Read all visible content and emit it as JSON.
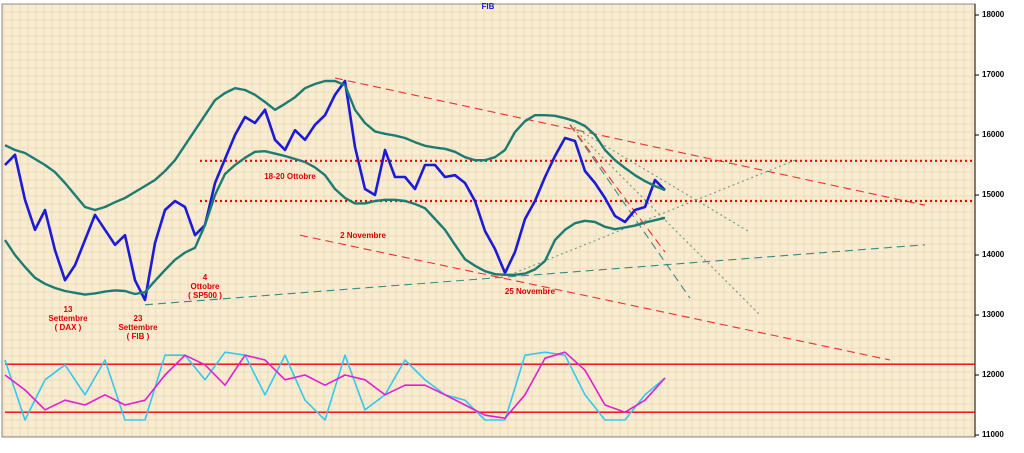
{
  "chart_data": {
    "type": "line",
    "title": "FIB",
    "ylim": [
      11000,
      18000
    ],
    "yticks": [
      11000,
      12000,
      13000,
      14000,
      15000,
      16000,
      17000,
      18000
    ],
    "series": [
      {
        "role": "price",
        "color": "#1c1cd8",
        "width": 2.6,
        "values": [
          15500,
          15670,
          14920,
          14420,
          14750,
          14080,
          13580,
          13830,
          14250,
          14670,
          14420,
          14170,
          14330,
          13580,
          13250,
          14200,
          14750,
          14900,
          14800,
          14330,
          14500,
          15200,
          15600,
          16000,
          16300,
          16200,
          16420,
          15920,
          15750,
          16080,
          15920,
          16170,
          16330,
          16670,
          16900,
          15800,
          15100,
          15000,
          15750,
          15300,
          15300,
          15100,
          15500,
          15500,
          15300,
          15330,
          15200,
          14900,
          14400,
          14100,
          13700,
          14050,
          14600,
          14900,
          15300,
          15650,
          15950,
          15900,
          15400,
          15200,
          14950,
          14650,
          14550,
          14750,
          14800,
          15250,
          15080
        ]
      },
      {
        "role": "band",
        "color": "#1d7c72",
        "width": 2.4,
        "values": [
          15830,
          15750,
          15700,
          15600,
          15500,
          15380,
          15200,
          15000,
          14800,
          14750,
          14800,
          14880,
          14950,
          15050,
          15150,
          15250,
          15400,
          15580,
          15830,
          16080,
          16330,
          16580,
          16700,
          16780,
          16750,
          16670,
          16550,
          16420,
          16520,
          16630,
          16780,
          16850,
          16900,
          16900,
          16830,
          16420,
          16200,
          16060,
          16020,
          15990,
          15950,
          15880,
          15820,
          15790,
          15770,
          15720,
          15630,
          15580,
          15580,
          15630,
          15750,
          16050,
          16230,
          16330,
          16330,
          16320,
          16280,
          16230,
          16150,
          16000,
          15750,
          15580,
          15450,
          15330,
          15230,
          15150,
          15080
        ]
      },
      {
        "role": "band",
        "color": "#1d7c72",
        "width": 2.4,
        "values": [
          14250,
          14000,
          13800,
          13620,
          13520,
          13450,
          13400,
          13370,
          13340,
          13360,
          13390,
          13410,
          13400,
          13350,
          13380,
          13570,
          13750,
          13920,
          14040,
          14120,
          14500,
          15000,
          15350,
          15500,
          15620,
          15720,
          15730,
          15690,
          15650,
          15600,
          15550,
          15460,
          15330,
          15100,
          14950,
          14860,
          14860,
          14900,
          14920,
          14920,
          14900,
          14850,
          14780,
          14600,
          14420,
          14170,
          13930,
          13820,
          13730,
          13680,
          13670,
          13670,
          13690,
          13760,
          13900,
          14250,
          14420,
          14530,
          14570,
          14550,
          14470,
          14430,
          14460,
          14490,
          14540,
          14580,
          14620
        ]
      },
      {
        "role": "oscillator",
        "color": "#35c8ee",
        "width": 1.6,
        "values": [
          12250,
          11250,
          11920,
          12170,
          11670,
          12250,
          11250,
          11250,
          12330,
          12330,
          11920,
          12380,
          12330,
          11670,
          12330,
          11580,
          11250,
          12330,
          11420,
          11670,
          12250,
          11920,
          11670,
          11580,
          11250,
          11250,
          12330,
          12380,
          12330,
          11670,
          11250,
          11250,
          11670,
          11950
        ]
      },
      {
        "role": "oscillator",
        "color": "#e020d0",
        "width": 1.6,
        "values": [
          12000,
          11750,
          11420,
          11580,
          11500,
          11670,
          11500,
          11580,
          12000,
          12330,
          12170,
          11830,
          12330,
          12250,
          11920,
          12000,
          11830,
          12000,
          11920,
          11670,
          11830,
          11830,
          11670,
          11500,
          11330,
          11280,
          11670,
          12280,
          12380,
          12080,
          11500,
          11380,
          11580,
          11950
        ]
      }
    ],
    "levels": [
      {
        "value": 15570,
        "color": "#ee0000",
        "style": "dotted",
        "from": 19.5
      },
      {
        "value": 14900,
        "color": "#ee0000",
        "style": "dotted",
        "from": 19.5
      },
      {
        "value": 12180,
        "color": "#ee0000",
        "style": "solid",
        "from": 0
      },
      {
        "value": 11380,
        "color": "#ee0000",
        "style": "solid",
        "from": 0
      }
    ],
    "trendlines": [
      {
        "x": [
          33,
          92
        ],
        "values": [
          16950,
          14830
        ],
        "color": "#ee3030",
        "style": "dashed"
      },
      {
        "x": [
          29.5,
          88.5
        ],
        "values": [
          14330,
          12250
        ],
        "color": "#ee3030",
        "style": "dashed"
      },
      {
        "x": [
          14,
          92
        ],
        "values": [
          13170,
          14170
        ],
        "color": "#3a8a8a",
        "style": "dashed"
      },
      {
        "x": [
          56.5,
          74.5
        ],
        "values": [
          16170,
          14380
        ],
        "color": "#6a9a80",
        "style": "dotted"
      },
      {
        "x": [
          56.5,
          75.5
        ],
        "values": [
          16170,
          13000
        ],
        "color": "#6a9a80",
        "style": "dotted"
      },
      {
        "x": [
          56.5,
          68.5
        ],
        "values": [
          16170,
          13280
        ],
        "color": "#3a8a8a",
        "style": "dashed"
      },
      {
        "x": [
          50.5,
          79
        ],
        "values": [
          13670,
          15580
        ],
        "color": "#6a9a80",
        "style": "dotted"
      },
      {
        "x": [
          56.5,
          66
        ],
        "values": [
          16170,
          14050
        ],
        "color": "#ee3030",
        "style": "dashed"
      }
    ],
    "annotations": [
      {
        "lines": [
          "13",
          "Settembre",
          "( DAX )"
        ]
      },
      {
        "lines": [
          "23",
          "Settembre",
          "( FIB )"
        ]
      },
      {
        "lines": [
          "4",
          "Ottobre",
          "( SP500 )"
        ]
      },
      {
        "lines": [
          "18-20 Ottobre"
        ]
      },
      {
        "lines": [
          "2 Novembre"
        ]
      },
      {
        "lines": [
          "25 Novembre"
        ]
      }
    ]
  }
}
